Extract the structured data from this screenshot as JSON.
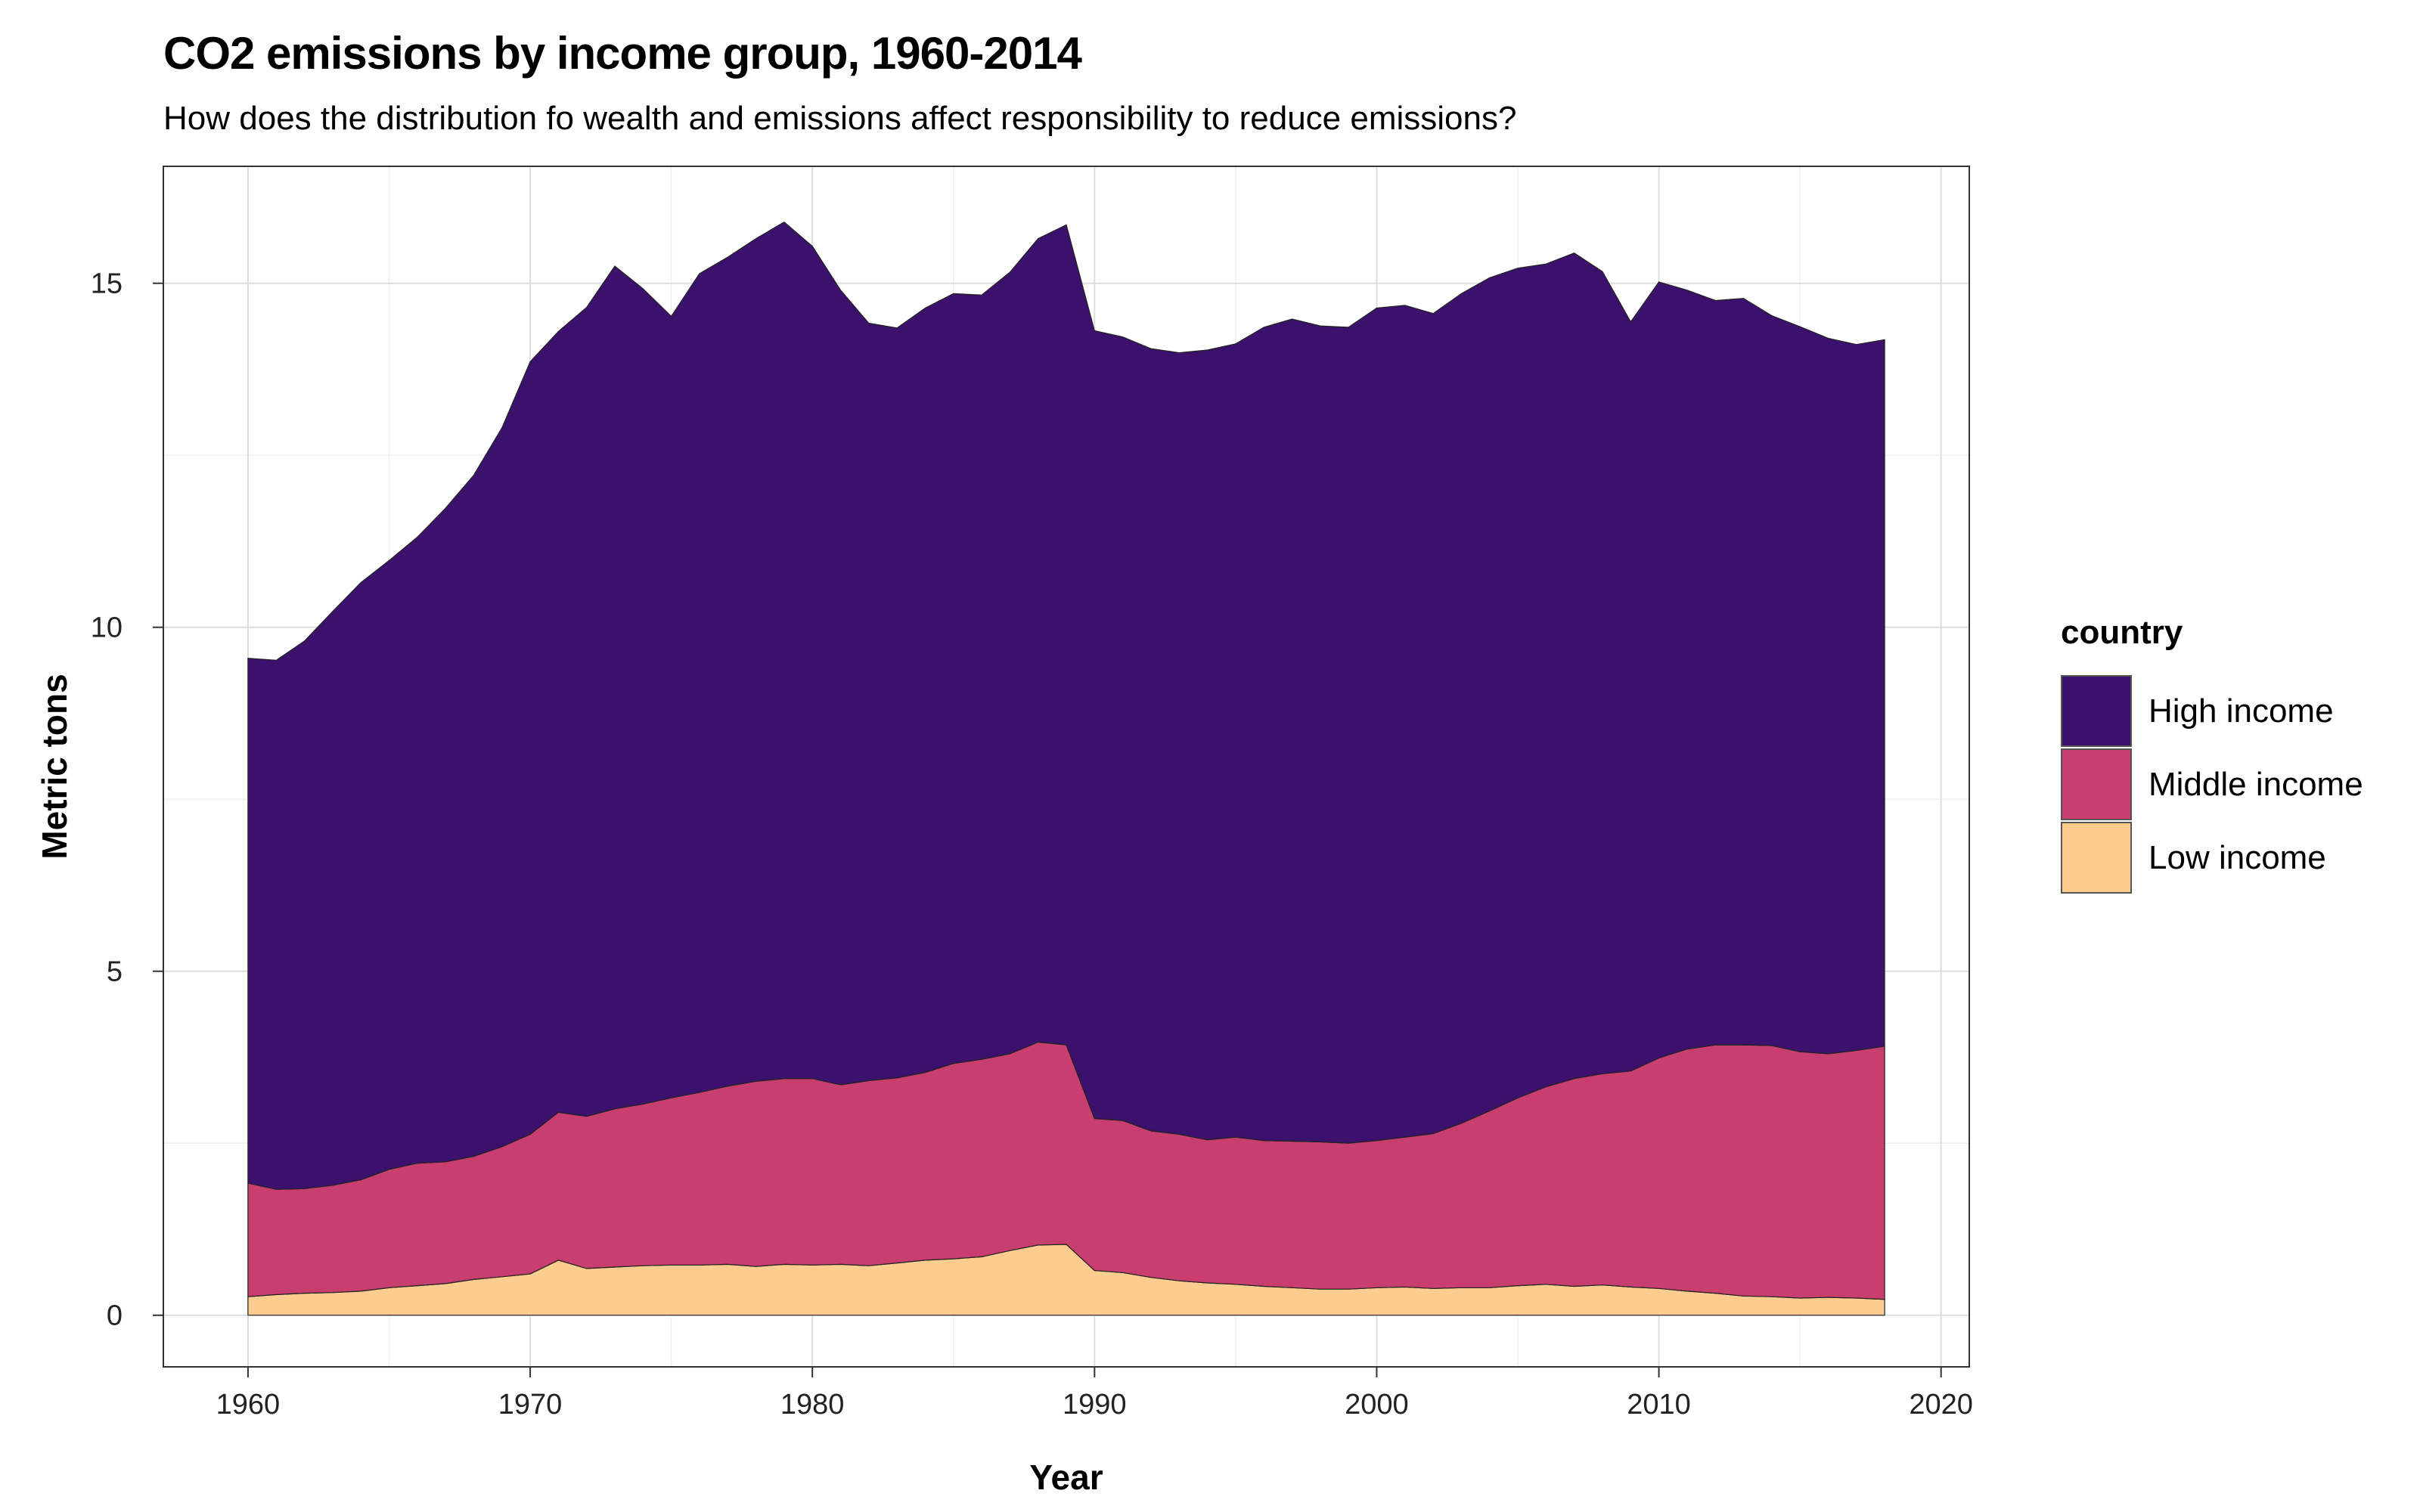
{
  "chart_data": {
    "type": "area",
    "stacked": true,
    "title": "CO2 emissions by income group, 1960-2014",
    "subtitle": "How does the distribution fo wealth and emissions affect responsibility to reduce emissions?",
    "xlabel": "Year",
    "ylabel": "Metric tons",
    "xlim": [
      1957,
      2021
    ],
    "ylim": [
      -0.75,
      16.7
    ],
    "xticks": [
      1960,
      1970,
      1980,
      1990,
      2000,
      2010,
      2020
    ],
    "yticks": [
      0,
      5,
      10,
      15
    ],
    "xtick_labels": [
      "1960",
      "1970",
      "1980",
      "1990",
      "2000",
      "2010",
      "2020"
    ],
    "ytick_labels": [
      "0",
      "5",
      "10",
      "15"
    ],
    "grid": true,
    "legend_position": "right",
    "legend_title": "country",
    "x": [
      1960,
      1961,
      1962,
      1963,
      1964,
      1965,
      1966,
      1967,
      1968,
      1969,
      1970,
      1971,
      1972,
      1973,
      1974,
      1975,
      1976,
      1977,
      1978,
      1979,
      1980,
      1981,
      1982,
      1983,
      1984,
      1985,
      1986,
      1987,
      1988,
      1989,
      1990,
      1991,
      1992,
      1993,
      1994,
      1995,
      1996,
      1997,
      1998,
      1999,
      2000,
      2001,
      2002,
      2003,
      2004,
      2005,
      2006,
      2007,
      2008,
      2009,
      2010,
      2011,
      2012,
      2013,
      2014,
      2015,
      2016,
      2017,
      2018
    ],
    "series": [
      {
        "name": "Low income",
        "color": "#FDCD90",
        "values": [
          0.27,
          0.3,
          0.32,
          0.33,
          0.35,
          0.4,
          0.43,
          0.46,
          0.52,
          0.56,
          0.6,
          0.8,
          0.68,
          0.7,
          0.72,
          0.73,
          0.73,
          0.74,
          0.71,
          0.74,
          0.73,
          0.74,
          0.72,
          0.76,
          0.8,
          0.82,
          0.85,
          0.94,
          1.02,
          1.03,
          0.65,
          0.62,
          0.55,
          0.5,
          0.47,
          0.45,
          0.42,
          0.4,
          0.38,
          0.38,
          0.4,
          0.41,
          0.39,
          0.4,
          0.4,
          0.43,
          0.45,
          0.42,
          0.44,
          0.41,
          0.39,
          0.35,
          0.32,
          0.28,
          0.27,
          0.25,
          0.26,
          0.25,
          0.23
        ]
      },
      {
        "name": "Middle income",
        "color": "#C83E6F",
        "values": [
          1.65,
          1.53,
          1.52,
          1.56,
          1.62,
          1.72,
          1.78,
          1.77,
          1.79,
          1.89,
          2.03,
          2.15,
          2.21,
          2.3,
          2.35,
          2.43,
          2.51,
          2.59,
          2.69,
          2.7,
          2.71,
          2.61,
          2.69,
          2.69,
          2.73,
          2.84,
          2.87,
          2.86,
          2.95,
          2.9,
          2.21,
          2.21,
          2.13,
          2.13,
          2.08,
          2.14,
          2.12,
          2.13,
          2.14,
          2.12,
          2.14,
          2.18,
          2.25,
          2.39,
          2.57,
          2.73,
          2.87,
          3.02,
          3.07,
          3.14,
          3.35,
          3.52,
          3.61,
          3.65,
          3.65,
          3.58,
          3.54,
          3.6,
          3.68
        ]
      },
      {
        "name": "High income",
        "color": "#3C116E",
        "values": [
          7.63,
          7.69,
          7.96,
          8.34,
          8.68,
          8.85,
          9.1,
          9.5,
          9.9,
          10.45,
          11.23,
          11.35,
          11.76,
          12.25,
          11.85,
          11.36,
          11.9,
          12.05,
          12.25,
          12.45,
          12.1,
          11.55,
          11.01,
          10.9,
          11.11,
          11.19,
          11.11,
          11.36,
          11.68,
          11.92,
          11.45,
          11.39,
          11.37,
          11.36,
          11.48,
          11.53,
          11.82,
          11.95,
          11.86,
          11.86,
          12.1,
          12.09,
          11.92,
          12.06,
          12.11,
          12.06,
          11.96,
          12.0,
          11.66,
          10.89,
          11.28,
          11.03,
          10.82,
          10.85,
          10.61,
          10.54,
          10.4,
          10.26,
          10.27
        ]
      }
    ]
  }
}
